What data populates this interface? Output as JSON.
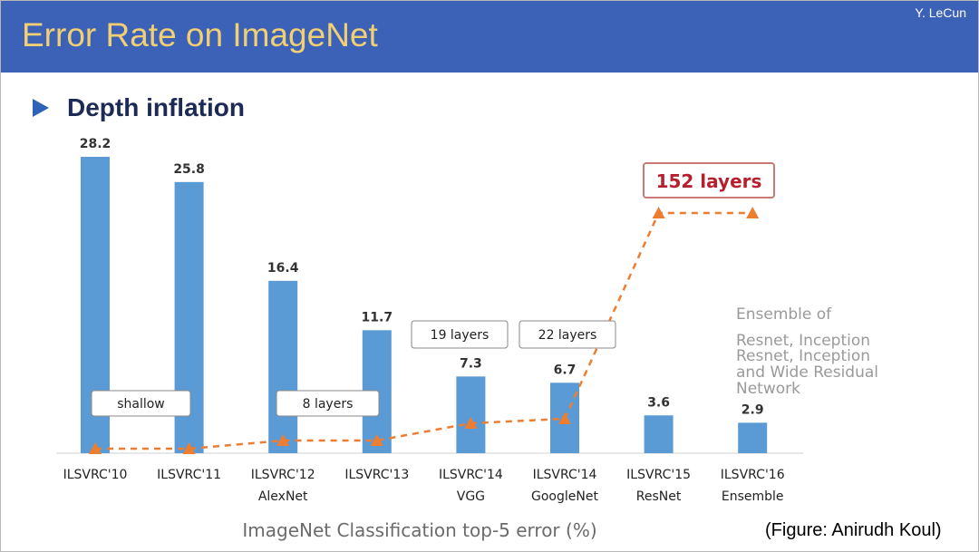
{
  "header": {
    "title": "Error Rate on ImageNet",
    "author": "Y. LeCun"
  },
  "slide": {
    "subtitle": "Depth inflation",
    "credit": "(Figure: Anirudh Koul)"
  },
  "chart_data": {
    "type": "bar",
    "xlabel": "ImageNet Classification top-5 error (%)",
    "categories": [
      [
        "ILSVRC'10",
        ""
      ],
      [
        "ILSVRC'11",
        ""
      ],
      [
        "ILSVRC'12",
        "AlexNet"
      ],
      [
        "ILSVRC'13",
        ""
      ],
      [
        "ILSVRC'14",
        "VGG"
      ],
      [
        "ILSVRC'14",
        "GoogleNet"
      ],
      [
        "ILSVRC'15",
        "ResNet"
      ],
      [
        "ILSVRC'16",
        "Ensemble"
      ]
    ],
    "values": [
      28.2,
      25.8,
      16.4,
      11.7,
      7.3,
      6.7,
      3.6,
      2.9
    ],
    "value_labels": [
      "28.2",
      "25.8",
      "16.4",
      "11.7",
      "7.3",
      "6.7",
      "3.6",
      "2.9"
    ],
    "ylim": [
      0,
      30
    ],
    "bar_color": "#5b9bd5",
    "depth_line": {
      "color": "#ed7d31",
      "style": "dashed",
      "marker": "triangle",
      "levels": [
        0,
        0,
        8,
        8,
        19,
        22,
        152,
        152
      ]
    },
    "annotations": [
      {
        "text": "shallow",
        "style": "box"
      },
      {
        "text": "8 layers",
        "style": "box"
      },
      {
        "text": "19 layers",
        "style": "box"
      },
      {
        "text": "22 layers",
        "style": "box"
      },
      {
        "text": "152 layers",
        "style": "box-emphasis"
      },
      {
        "text": "Ensemble of",
        "style": "note"
      },
      {
        "text": "Resnet, Inception",
        "style": "note"
      },
      {
        "text": "Resnet, Inception",
        "style": "note"
      },
      {
        "text": "and Wide Residual",
        "style": "note"
      },
      {
        "text": "Network",
        "style": "note"
      }
    ]
  }
}
